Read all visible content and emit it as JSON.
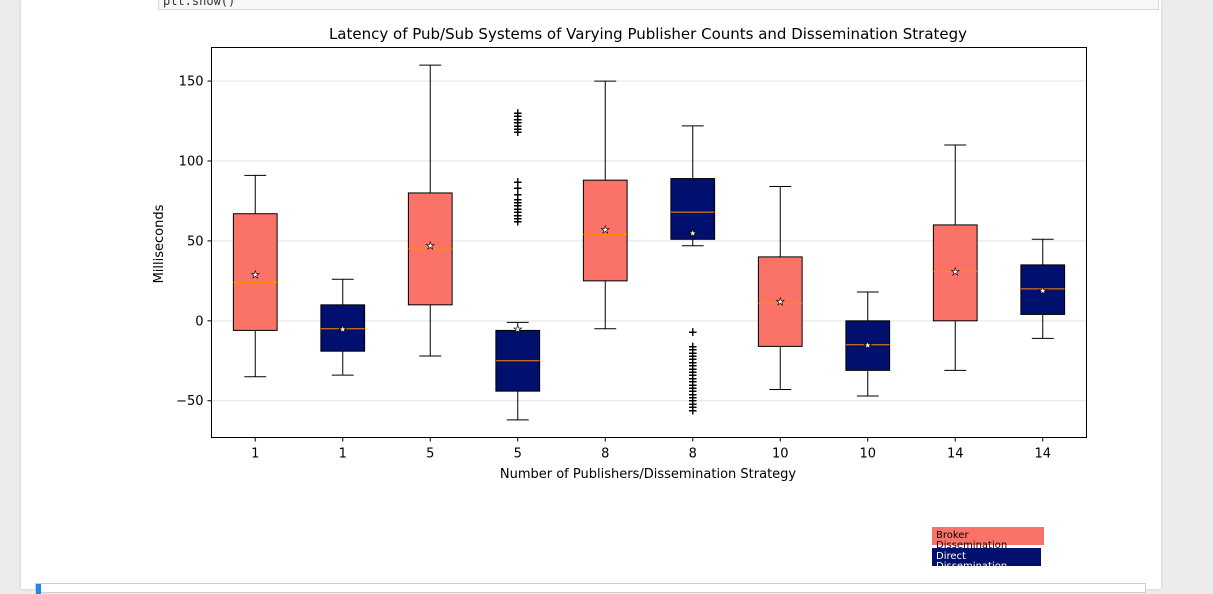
{
  "notebook": {
    "code_tail": "plt.show()"
  },
  "chart_data": {
    "type": "box",
    "title": "Latency of Pub/Sub Systems of Varying Publisher Counts and Dissemination Strategy",
    "xlabel": "Number of Publishers/Dissemination Strategy",
    "ylabel": "Milliseconds",
    "ylim": [
      -73,
      171
    ],
    "yticks": [
      -50,
      0,
      50,
      100,
      150
    ],
    "grid": "horizontal",
    "categories": [
      "1",
      "1",
      "5",
      "5",
      "8",
      "8",
      "10",
      "10",
      "14",
      "14"
    ],
    "colors": {
      "broker": "#fb7268",
      "direct": "#010f6f",
      "median": "#ff8c00"
    },
    "boxes": [
      {
        "label": "1",
        "strategy": "broker",
        "whislo": -35,
        "q1": -6,
        "med": 24,
        "q3": 67,
        "whishi": 91,
        "mean": 29,
        "fliers": []
      },
      {
        "label": "1",
        "strategy": "direct",
        "whislo": -34,
        "q1": -19,
        "med": -5,
        "q3": 10,
        "whishi": 26,
        "mean": -5,
        "fliers": []
      },
      {
        "label": "5",
        "strategy": "broker",
        "whislo": -22,
        "q1": 10,
        "med": 45,
        "q3": 80,
        "whishi": 160,
        "mean": 47,
        "fliers": []
      },
      {
        "label": "5",
        "strategy": "direct",
        "whislo": -62,
        "q1": -44,
        "med": -25,
        "q3": -6,
        "whishi": -1,
        "mean": -5,
        "fliers": [
          62,
          64,
          66,
          68,
          70,
          72,
          74,
          76,
          79,
          83,
          87,
          118,
          120,
          122,
          124,
          126,
          128,
          130
        ]
      },
      {
        "label": "8",
        "strategy": "broker",
        "whislo": -5,
        "q1": 25,
        "med": 54,
        "q3": 88,
        "whishi": 150,
        "mean": 57,
        "fliers": []
      },
      {
        "label": "8",
        "strategy": "direct",
        "whislo": 47,
        "q1": 51,
        "med": 68,
        "q3": 89,
        "whishi": 122,
        "mean": 55,
        "fliers": [
          -7,
          -16,
          -18,
          -20,
          -22,
          -24,
          -26,
          -28,
          -30,
          -32,
          -34,
          -36,
          -38,
          -40,
          -42,
          -44,
          -46,
          -48,
          -50,
          -52,
          -54,
          -56
        ]
      },
      {
        "label": "10",
        "strategy": "broker",
        "whislo": -43,
        "q1": -16,
        "med": 11,
        "q3": 40,
        "whishi": 84,
        "mean": 12,
        "fliers": []
      },
      {
        "label": "10",
        "strategy": "direct",
        "whislo": -47,
        "q1": -31,
        "med": -15,
        "q3": 0,
        "whishi": 18,
        "mean": -15,
        "fliers": []
      },
      {
        "label": "14",
        "strategy": "broker",
        "whislo": -31,
        "q1": 0,
        "med": 31,
        "q3": 60,
        "whishi": 110,
        "mean": 31,
        "fliers": []
      },
      {
        "label": "14",
        "strategy": "direct",
        "whislo": -11,
        "q1": 4,
        "med": 20,
        "q3": 35,
        "whishi": 51,
        "mean": 19,
        "fliers": []
      }
    ],
    "legend": {
      "placement": "bottom-right",
      "entries": [
        {
          "label": "Broker Dissemination",
          "strategy": "broker"
        },
        {
          "label": "Direct Dissemination",
          "strategy": "direct"
        }
      ]
    }
  }
}
